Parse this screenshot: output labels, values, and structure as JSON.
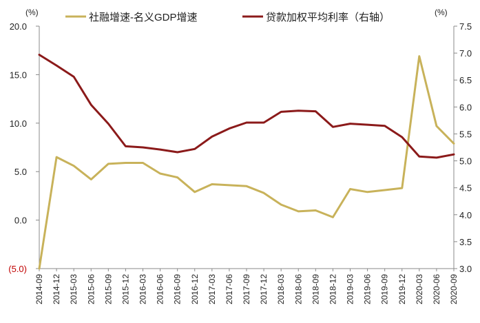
{
  "chart_data": {
    "type": "line",
    "categories": [
      "2014-09",
      "2014-12",
      "2015-03",
      "2015-06",
      "2015-09",
      "2015-12",
      "2016-03",
      "2016-06",
      "2016-09",
      "2016-12",
      "2017-03",
      "2017-06",
      "2017-09",
      "2017-12",
      "2018-03",
      "2018-06",
      "2018-09",
      "2018-12",
      "2019-03",
      "2019-06",
      "2019-09",
      "2019-12",
      "2020-03",
      "2020-06",
      "2020-09"
    ],
    "series": [
      {
        "name": "社融增速-名义GDP增速",
        "axis": "left",
        "color": "#c8b25a",
        "values": [
          -5.0,
          6.5,
          5.6,
          4.2,
          5.8,
          5.9,
          5.9,
          4.8,
          4.4,
          2.9,
          3.7,
          3.6,
          3.5,
          2.8,
          1.6,
          0.9,
          1.0,
          0.3,
          3.2,
          2.9,
          3.1,
          3.3,
          16.9,
          9.7,
          7.9
        ]
      },
      {
        "name": "贷款加权平均利率（右轴）",
        "axis": "right",
        "color": "#8b1a1a",
        "values": [
          6.97,
          6.77,
          6.56,
          6.04,
          5.69,
          5.27,
          5.25,
          5.21,
          5.16,
          5.22,
          5.45,
          5.6,
          5.71,
          5.71,
          5.91,
          5.93,
          5.92,
          5.63,
          5.69,
          5.67,
          5.65,
          5.44,
          5.08,
          5.06,
          5.12
        ]
      }
    ],
    "left_axis": {
      "unit": "(%)",
      "ylim": [
        -5,
        20
      ],
      "ticks": [
        -5,
        0,
        5,
        10,
        15,
        20
      ],
      "tick_labels": [
        "(5.0)",
        "0.0",
        "5.0",
        "10.0",
        "15.0",
        "20.0"
      ]
    },
    "right_axis": {
      "unit": "(%)",
      "ylim": [
        3.0,
        7.5
      ],
      "ticks": [
        3.0,
        3.5,
        4.0,
        4.5,
        5.0,
        5.5,
        6.0,
        6.5,
        7.0,
        7.5
      ],
      "tick_labels": [
        "3.0",
        "3.5",
        "4.0",
        "4.5",
        "5.0",
        "5.5",
        "6.0",
        "6.5",
        "7.0",
        "7.5"
      ]
    },
    "grid": false,
    "legend_position": "top",
    "colors": {
      "negative_label": "#c00000",
      "axis": "#888888"
    }
  }
}
